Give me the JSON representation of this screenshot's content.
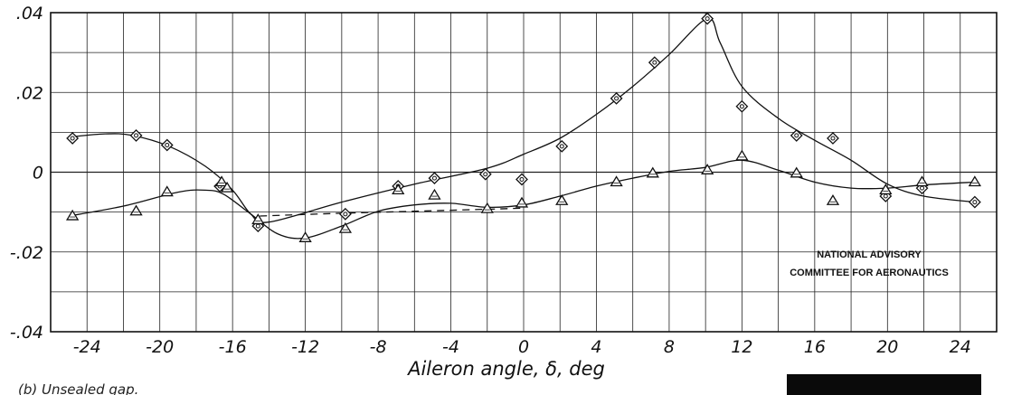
{
  "chart_data": {
    "type": "scatter",
    "title": "",
    "xlabel": "Aileron angle, δ, deg",
    "ylabel": "",
    "xlim": [
      -26,
      26
    ],
    "ylim": [
      -0.04,
      0.04
    ],
    "grid": true,
    "x_ticks": [
      "-24",
      "-20",
      "-16",
      "-12",
      "-8",
      "-4",
      "0",
      "4",
      "8",
      "12",
      "16",
      "20",
      "24"
    ],
    "y_ticks": [
      ".04",
      ".02",
      "0",
      "-.02",
      "-.04"
    ],
    "series": [
      {
        "marker": "diamond",
        "points": [
          [
            -24.8,
            0.0085
          ],
          [
            -21.3,
            0.0092
          ],
          [
            -19.6,
            0.0068
          ],
          [
            -16.7,
            -0.0035
          ],
          [
            -14.6,
            -0.0135
          ],
          [
            -9.8,
            -0.0105
          ],
          [
            -6.9,
            -0.0035
          ],
          [
            -4.9,
            -0.0015
          ],
          [
            -2.1,
            -0.0005
          ],
          [
            -0.1,
            -0.0018
          ],
          [
            2.1,
            0.0065
          ],
          [
            5.1,
            0.0185
          ],
          [
            7.2,
            0.0275
          ],
          [
            10.1,
            0.0385
          ],
          [
            12.0,
            0.0165
          ],
          [
            15.0,
            0.0092
          ],
          [
            17.0,
            0.0085
          ],
          [
            19.9,
            -0.006
          ],
          [
            21.9,
            -0.004
          ],
          [
            24.8,
            -0.0075
          ]
        ],
        "curve": [
          [
            -25.0,
            0.0088
          ],
          [
            -23.0,
            0.0096
          ],
          [
            -21.5,
            0.0092
          ],
          [
            -19.5,
            0.0065
          ],
          [
            -17.5,
            0.0015
          ],
          [
            -16.0,
            -0.0045
          ],
          [
            -15.0,
            -0.0105
          ],
          [
            -14.0,
            -0.0125
          ],
          [
            -10.0,
            -0.0075
          ],
          [
            -6.0,
            -0.003
          ],
          [
            -2.0,
            0.001
          ],
          [
            0.0,
            0.0045
          ],
          [
            2.0,
            0.0085
          ],
          [
            4.0,
            0.0145
          ],
          [
            6.0,
            0.0215
          ],
          [
            8.0,
            0.0295
          ],
          [
            10.1,
            0.0385
          ],
          [
            10.8,
            0.0325
          ],
          [
            12.0,
            0.0215
          ],
          [
            14.0,
            0.0135
          ],
          [
            16.0,
            0.008
          ],
          [
            18.0,
            0.003
          ],
          [
            20.0,
            -0.003
          ],
          [
            22.0,
            -0.006
          ],
          [
            24.8,
            -0.0075
          ]
        ]
      },
      {
        "marker": "triangle",
        "points": [
          [
            -24.8,
            -0.011
          ],
          [
            -21.3,
            -0.0098
          ],
          [
            -19.6,
            -0.005
          ],
          [
            -16.6,
            -0.0025
          ],
          [
            -16.3,
            -0.004
          ],
          [
            -14.6,
            -0.012
          ],
          [
            -12.0,
            -0.0165
          ],
          [
            -9.8,
            -0.0142
          ],
          [
            -6.9,
            -0.0045
          ],
          [
            -4.9,
            -0.0058
          ],
          [
            -2.0,
            -0.0092
          ],
          [
            -0.1,
            -0.0078
          ],
          [
            2.1,
            -0.0072
          ],
          [
            5.1,
            -0.0025
          ],
          [
            7.1,
            -0.0003
          ],
          [
            10.1,
            0.0005
          ],
          [
            12.0,
            0.004
          ],
          [
            15.0,
            -0.0003
          ],
          [
            17.0,
            -0.0072
          ],
          [
            19.9,
            -0.0045
          ],
          [
            21.9,
            -0.0025
          ],
          [
            24.8,
            -0.0025
          ]
        ],
        "curve": [
          [
            -25.0,
            -0.011
          ],
          [
            -22.0,
            -0.0085
          ],
          [
            -19.0,
            -0.005
          ],
          [
            -17.5,
            -0.0045
          ],
          [
            -16.5,
            -0.0055
          ],
          [
            -15.0,
            -0.0105
          ],
          [
            -13.5,
            -0.0155
          ],
          [
            -12.0,
            -0.0165
          ],
          [
            -10.0,
            -0.0135
          ],
          [
            -8.0,
            -0.0098
          ],
          [
            -6.0,
            -0.0082
          ],
          [
            -4.0,
            -0.0078
          ],
          [
            -2.0,
            -0.0088
          ],
          [
            0.0,
            -0.0082
          ],
          [
            2.0,
            -0.006
          ],
          [
            4.0,
            -0.0035
          ],
          [
            6.0,
            -0.0015
          ],
          [
            8.0,
            0.0002
          ],
          [
            10.0,
            0.0012
          ],
          [
            12.0,
            0.003
          ],
          [
            14.0,
            0.0005
          ],
          [
            16.0,
            -0.0025
          ],
          [
            18.0,
            -0.004
          ],
          [
            20.0,
            -0.004
          ],
          [
            22.0,
            -0.0032
          ],
          [
            24.8,
            -0.0025
          ]
        ]
      },
      {
        "marker": "dashed",
        "points": [],
        "curve": [
          [
            -14.5,
            -0.011
          ],
          [
            -10.0,
            -0.0103
          ],
          [
            -6.0,
            -0.0098
          ],
          [
            -2.0,
            -0.0093
          ],
          [
            0.0,
            -0.009
          ]
        ]
      }
    ],
    "annotations": [
      "NATIONAL ADVISORY",
      "COMMITTEE FOR AERONAUTICS"
    ],
    "caption": "(b) Unsealed gap."
  }
}
